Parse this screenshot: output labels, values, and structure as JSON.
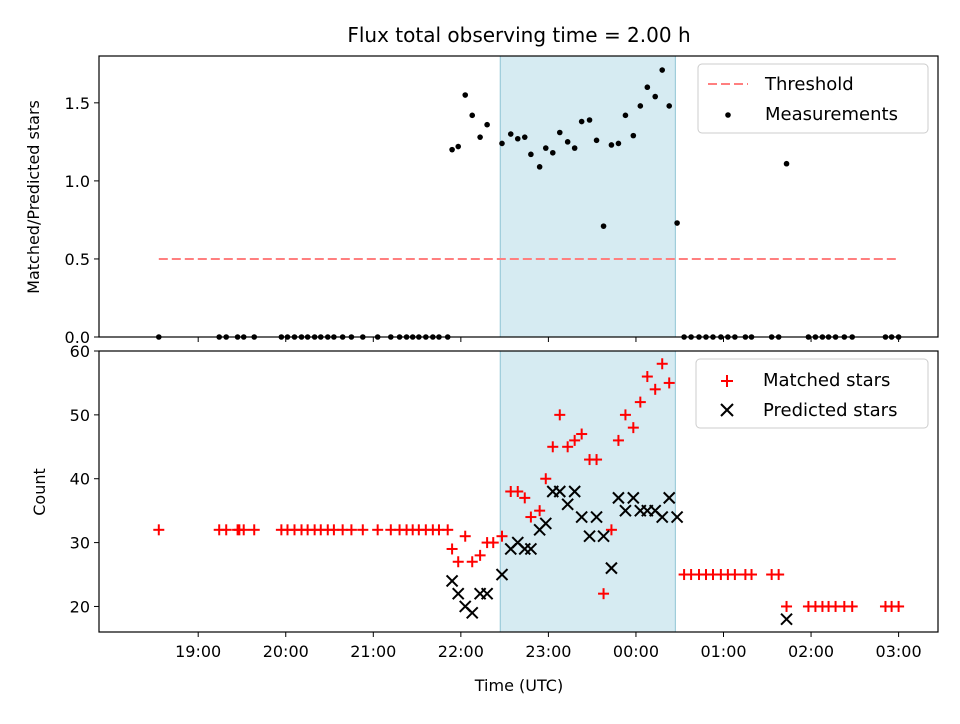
{
  "chart_data": [
    {
      "type": "scatter",
      "title": "Flux total observing time = 2.00 h",
      "xlabel": "",
      "ylabel": "Matched/Predicted stars",
      "ylim": [
        0,
        1.8
      ],
      "xlim_hours": [
        17.867,
        27.45
      ],
      "yticks": [
        0.0,
        0.5,
        1.0,
        1.5
      ],
      "ytick_labels": [
        "0.0",
        "0.5",
        "1.0",
        "1.5"
      ],
      "observing_window_hours": [
        22.45,
        24.45
      ],
      "legend_position": "top-right",
      "colors": {
        "threshold": "#ff7f7f",
        "measurements": "#000000",
        "window": "#add8e6"
      },
      "threshold": {
        "name": "Threshold",
        "value": 0.5,
        "x_range_hours": [
          18.55,
          26.98
        ]
      },
      "series": [
        {
          "name": "Measurements",
          "points": [
            [
              18.55,
              0
            ],
            [
              19.24,
              0
            ],
            [
              19.32,
              0
            ],
            [
              19.45,
              0
            ],
            [
              19.52,
              0
            ],
            [
              19.64,
              0
            ],
            [
              19.95,
              0
            ],
            [
              20.02,
              0
            ],
            [
              20.1,
              0
            ],
            [
              20.18,
              0
            ],
            [
              20.25,
              0
            ],
            [
              20.33,
              0
            ],
            [
              20.4,
              0
            ],
            [
              20.48,
              0
            ],
            [
              20.55,
              0
            ],
            [
              20.65,
              0
            ],
            [
              20.75,
              0
            ],
            [
              20.88,
              0
            ],
            [
              21.05,
              0
            ],
            [
              21.2,
              0
            ],
            [
              21.3,
              0
            ],
            [
              21.38,
              0
            ],
            [
              21.45,
              0
            ],
            [
              21.52,
              0
            ],
            [
              21.6,
              0
            ],
            [
              21.68,
              0
            ],
            [
              21.75,
              0
            ],
            [
              21.85,
              0
            ],
            [
              21.9,
              1.2
            ],
            [
              21.97,
              1.22
            ],
            [
              22.05,
              1.55
            ],
            [
              22.13,
              1.42
            ],
            [
              22.22,
              1.28
            ],
            [
              22.3,
              1.36
            ],
            [
              22.47,
              1.24
            ],
            [
              22.57,
              1.3
            ],
            [
              22.65,
              1.27
            ],
            [
              22.73,
              1.28
            ],
            [
              22.8,
              1.17
            ],
            [
              22.9,
              1.09
            ],
            [
              22.97,
              1.21
            ],
            [
              23.05,
              1.18
            ],
            [
              23.13,
              1.31
            ],
            [
              23.22,
              1.25
            ],
            [
              23.3,
              1.21
            ],
            [
              23.38,
              1.38
            ],
            [
              23.47,
              1.39
            ],
            [
              23.55,
              1.26
            ],
            [
              23.63,
              0.71
            ],
            [
              23.72,
              1.23
            ],
            [
              23.8,
              1.24
            ],
            [
              23.88,
              1.42
            ],
            [
              23.97,
              1.29
            ],
            [
              24.05,
              1.48
            ],
            [
              24.13,
              1.6
            ],
            [
              24.22,
              1.54
            ],
            [
              24.3,
              1.71
            ],
            [
              24.38,
              1.48
            ],
            [
              24.47,
              0.73
            ],
            [
              24.55,
              0
            ],
            [
              24.63,
              0
            ],
            [
              24.72,
              0
            ],
            [
              24.8,
              0
            ],
            [
              24.88,
              0
            ],
            [
              24.97,
              0
            ],
            [
              25.05,
              0
            ],
            [
              25.13,
              0
            ],
            [
              25.25,
              0
            ],
            [
              25.32,
              0
            ],
            [
              25.55,
              0
            ],
            [
              25.63,
              0
            ],
            [
              25.72,
              1.11
            ],
            [
              25.97,
              0
            ],
            [
              26.05,
              0
            ],
            [
              26.13,
              0
            ],
            [
              26.2,
              0
            ],
            [
              26.28,
              0
            ],
            [
              26.38,
              0
            ],
            [
              26.47,
              0
            ],
            [
              26.85,
              0
            ],
            [
              26.92,
              0
            ],
            [
              27.0,
              0
            ]
          ]
        }
      ]
    },
    {
      "type": "scatter",
      "title": "",
      "xlabel": "Time (UTC)",
      "ylabel": "Count",
      "ylim": [
        16,
        60
      ],
      "xlim_hours": [
        17.867,
        27.45
      ],
      "yticks": [
        20,
        30,
        40,
        50,
        60
      ],
      "ytick_labels": [
        "20",
        "30",
        "40",
        "50",
        "60"
      ],
      "xticks_hours": [
        19,
        20,
        21,
        22,
        23,
        24,
        25,
        26,
        27
      ],
      "xtick_labels": [
        "19:00",
        "20:00",
        "21:00",
        "22:00",
        "23:00",
        "00:00",
        "01:00",
        "02:00",
        "03:00"
      ],
      "observing_window_hours": [
        22.45,
        24.45
      ],
      "legend_position": "top-right",
      "colors": {
        "matched": "#ff0000",
        "predicted": "#000000",
        "window": "#add8e6"
      },
      "series": [
        {
          "name": "Matched stars",
          "marker": "plus",
          "points": [
            [
              18.55,
              32
            ],
            [
              19.24,
              32
            ],
            [
              19.32,
              32
            ],
            [
              19.45,
              32
            ],
            [
              19.47,
              32
            ],
            [
              19.52,
              32
            ],
            [
              19.64,
              32
            ],
            [
              19.95,
              32
            ],
            [
              20.02,
              32
            ],
            [
              20.1,
              32
            ],
            [
              20.18,
              32
            ],
            [
              20.25,
              32
            ],
            [
              20.33,
              32
            ],
            [
              20.4,
              32
            ],
            [
              20.48,
              32
            ],
            [
              20.55,
              32
            ],
            [
              20.65,
              32
            ],
            [
              20.75,
              32
            ],
            [
              20.88,
              32
            ],
            [
              21.05,
              32
            ],
            [
              21.2,
              32
            ],
            [
              21.3,
              32
            ],
            [
              21.38,
              32
            ],
            [
              21.45,
              32
            ],
            [
              21.52,
              32
            ],
            [
              21.6,
              32
            ],
            [
              21.68,
              32
            ],
            [
              21.75,
              32
            ],
            [
              21.85,
              32
            ],
            [
              21.9,
              29
            ],
            [
              21.97,
              27
            ],
            [
              22.05,
              31
            ],
            [
              22.13,
              27
            ],
            [
              22.22,
              28
            ],
            [
              22.3,
              30
            ],
            [
              22.37,
              30
            ],
            [
              22.47,
              31
            ],
            [
              22.57,
              38
            ],
            [
              22.65,
              38
            ],
            [
              22.73,
              37
            ],
            [
              22.8,
              34
            ],
            [
              22.9,
              35
            ],
            [
              22.97,
              40
            ],
            [
              23.05,
              45
            ],
            [
              23.13,
              50
            ],
            [
              23.22,
              45
            ],
            [
              23.3,
              46
            ],
            [
              23.38,
              47
            ],
            [
              23.47,
              43
            ],
            [
              23.55,
              43
            ],
            [
              23.63,
              22
            ],
            [
              23.72,
              32
            ],
            [
              23.8,
              46
            ],
            [
              23.88,
              50
            ],
            [
              23.97,
              48
            ],
            [
              24.05,
              52
            ],
            [
              24.13,
              56
            ],
            [
              24.22,
              54
            ],
            [
              24.3,
              58
            ],
            [
              24.38,
              55
            ],
            [
              24.55,
              25
            ],
            [
              24.63,
              25
            ],
            [
              24.72,
              25
            ],
            [
              24.8,
              25
            ],
            [
              24.88,
              25
            ],
            [
              24.97,
              25
            ],
            [
              25.05,
              25
            ],
            [
              25.13,
              25
            ],
            [
              25.25,
              25
            ],
            [
              25.32,
              25
            ],
            [
              25.55,
              25
            ],
            [
              25.63,
              25
            ],
            [
              25.72,
              20
            ],
            [
              25.97,
              20
            ],
            [
              26.05,
              20
            ],
            [
              26.13,
              20
            ],
            [
              26.2,
              20
            ],
            [
              26.28,
              20
            ],
            [
              26.38,
              20
            ],
            [
              26.47,
              20
            ],
            [
              26.85,
              20
            ],
            [
              26.92,
              20
            ],
            [
              27.0,
              20
            ]
          ]
        },
        {
          "name": "Predicted stars",
          "marker": "x",
          "points": [
            [
              21.9,
              24
            ],
            [
              21.97,
              22
            ],
            [
              22.05,
              20
            ],
            [
              22.13,
              19
            ],
            [
              22.22,
              22
            ],
            [
              22.3,
              22
            ],
            [
              22.47,
              25
            ],
            [
              22.57,
              29
            ],
            [
              22.65,
              30
            ],
            [
              22.73,
              29
            ],
            [
              22.8,
              29
            ],
            [
              22.9,
              32
            ],
            [
              22.97,
              33
            ],
            [
              23.05,
              38
            ],
            [
              23.13,
              38
            ],
            [
              23.22,
              36
            ],
            [
              23.3,
              38
            ],
            [
              23.38,
              34
            ],
            [
              23.47,
              31
            ],
            [
              23.55,
              34
            ],
            [
              23.63,
              31
            ],
            [
              23.72,
              26
            ],
            [
              23.8,
              37
            ],
            [
              23.88,
              35
            ],
            [
              23.97,
              37
            ],
            [
              24.05,
              35
            ],
            [
              24.13,
              35
            ],
            [
              24.22,
              35
            ],
            [
              24.3,
              34
            ],
            [
              24.38,
              37
            ],
            [
              24.47,
              34
            ],
            [
              25.72,
              18
            ]
          ]
        }
      ]
    }
  ]
}
